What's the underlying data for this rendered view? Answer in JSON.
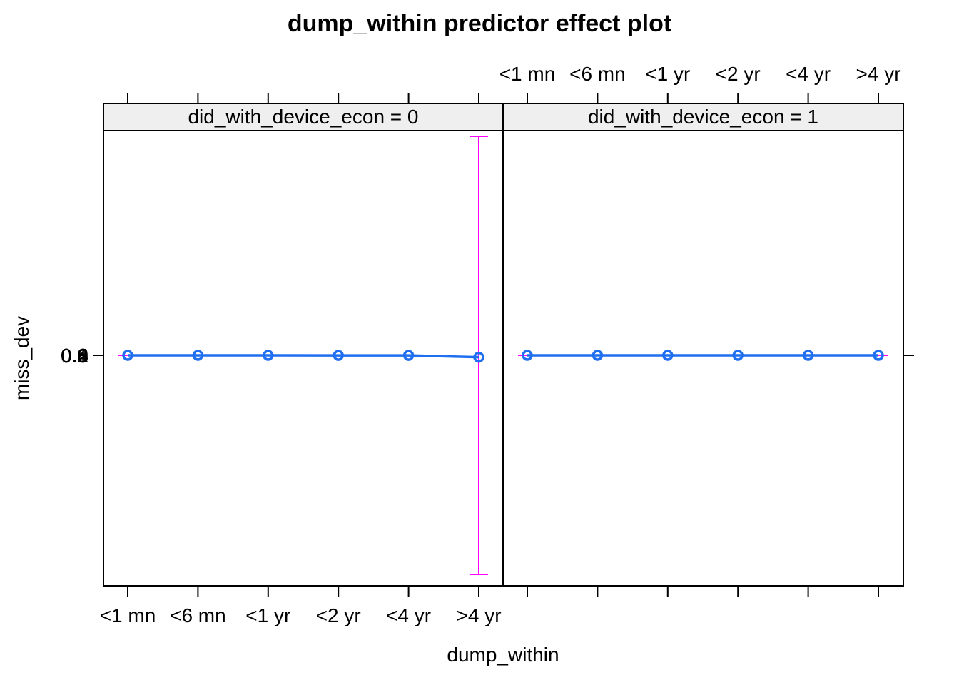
{
  "chart_data": {
    "type": "line",
    "title": "dump_within predictor effect plot",
    "xlabel": "dump_within",
    "ylabel": "miss_dev",
    "categories": [
      "<1 mn",
      "<6 mn",
      "<1 yr",
      "<2 yr",
      "<4 yr",
      ">4 yr"
    ],
    "y_tick_labels": [
      "0",
      "0.2",
      "0.4",
      "0.6",
      "0.8",
      "1"
    ],
    "panels": [
      {
        "strip": "did_with_device_econ = 0",
        "values": [
          0.0,
          0.0,
          0.0,
          -0.0005,
          -0.0005,
          -0.0085
        ],
        "lower": [
          0.0,
          0.0,
          0.0,
          -0.0005,
          -0.0005,
          -1.0
        ],
        "upper": [
          0.0,
          0.0,
          0.0,
          -0.0005,
          -0.0005,
          1.0
        ]
      },
      {
        "strip": "did_with_device_econ = 1",
        "values": [
          0.0,
          0.0,
          0.0,
          0.0,
          0.0,
          0.0
        ],
        "lower": [
          0.0,
          0.0,
          0.0,
          0.0,
          0.0,
          0.0
        ],
        "upper": [
          0.0,
          0.0,
          0.0,
          0.0,
          0.0,
          0.0
        ]
      }
    ],
    "ylim": [
      -1.05,
      1.05
    ],
    "line_color": "#1f6ff0",
    "ci_color": "#ff00ff",
    "strip_color": "#efefef"
  }
}
